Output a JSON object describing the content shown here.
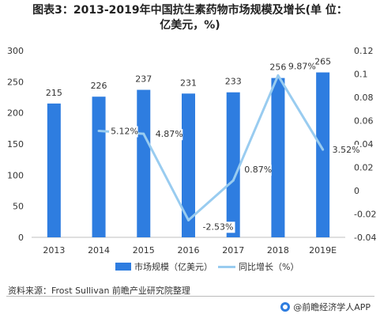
{
  "title": {
    "line1": "图表3：2013-2019年中国抗生素药物市场规模及增长(单 位：",
    "line2": "亿美元，%)"
  },
  "chart_data": {
    "type": "bar",
    "categories": [
      "2013",
      "2014",
      "2015",
      "2016",
      "2017",
      "2018",
      "2019E"
    ],
    "series": [
      {
        "name": "市场规模（亿美元）",
        "type": "bar",
        "axis": "left",
        "values": [
          215,
          226,
          237,
          231,
          233,
          256,
          265
        ],
        "labels": [
          "215",
          "226",
          "237",
          "231",
          "233",
          "256",
          "265"
        ]
      },
      {
        "name": "同比增长（%）",
        "type": "line",
        "axis": "right",
        "values": [
          null,
          0.0512,
          0.0487,
          -0.0253,
          0.0087,
          0.0987,
          0.0352
        ],
        "labels": [
          "",
          "5.12%",
          "4.87%",
          "-2.53%",
          "0.87%",
          "9.87%",
          "3.52%"
        ]
      }
    ],
    "y_left": {
      "min": 0,
      "max": 300,
      "ticks": [
        "0",
        "50",
        "100",
        "150",
        "200",
        "250",
        "300"
      ]
    },
    "y_right": {
      "min": -0.04,
      "max": 0.12,
      "ticks": [
        "-0.04",
        "-0.02",
        "0",
        "0.02",
        "0.04",
        "0.06",
        "0.08",
        "0.1",
        "0.12"
      ]
    },
    "grid": false,
    "legend": "bottom",
    "colors": {
      "bar": "#2e7de0",
      "line": "#99ccf0"
    }
  },
  "legend": {
    "bar_label": "市场规模（亿美元）",
    "line_label": "同比增长（%）"
  },
  "source": "资料来源：Frost Sullivan 前瞻产业研究院整理",
  "brand": "@前瞻经济学人APP"
}
